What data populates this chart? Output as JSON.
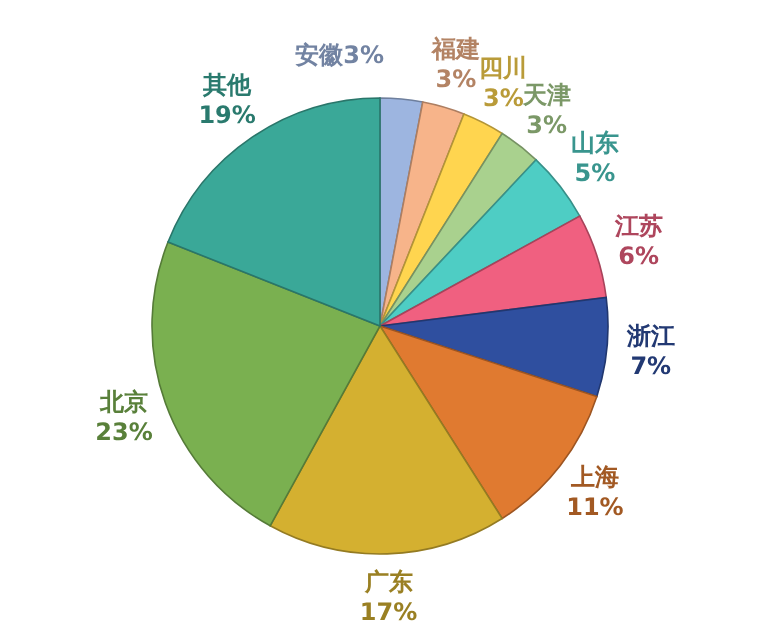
{
  "chart_data": {
    "type": "pie",
    "categories": [
      "安徽",
      "福建",
      "四川",
      "天津",
      "山东",
      "江苏",
      "浙江",
      "上海",
      "广东",
      "北京",
      "其他"
    ],
    "values": [
      3,
      3,
      3,
      3,
      5,
      6,
      7,
      11,
      17,
      23,
      19
    ],
    "value_labels": [
      "3%",
      "3%",
      "3%",
      "3%",
      "5%",
      "6%",
      "7%",
      "11%",
      "17%",
      "23%",
      "19%"
    ],
    "colors": [
      "#9db5e0",
      "#f7b48a",
      "#ffd54f",
      "#a9d18e",
      "#4ecdc4",
      "#f06080",
      "#2f4f9f",
      "#e07a30",
      "#d4b030",
      "#7ab050",
      "#3aa898"
    ]
  }
}
